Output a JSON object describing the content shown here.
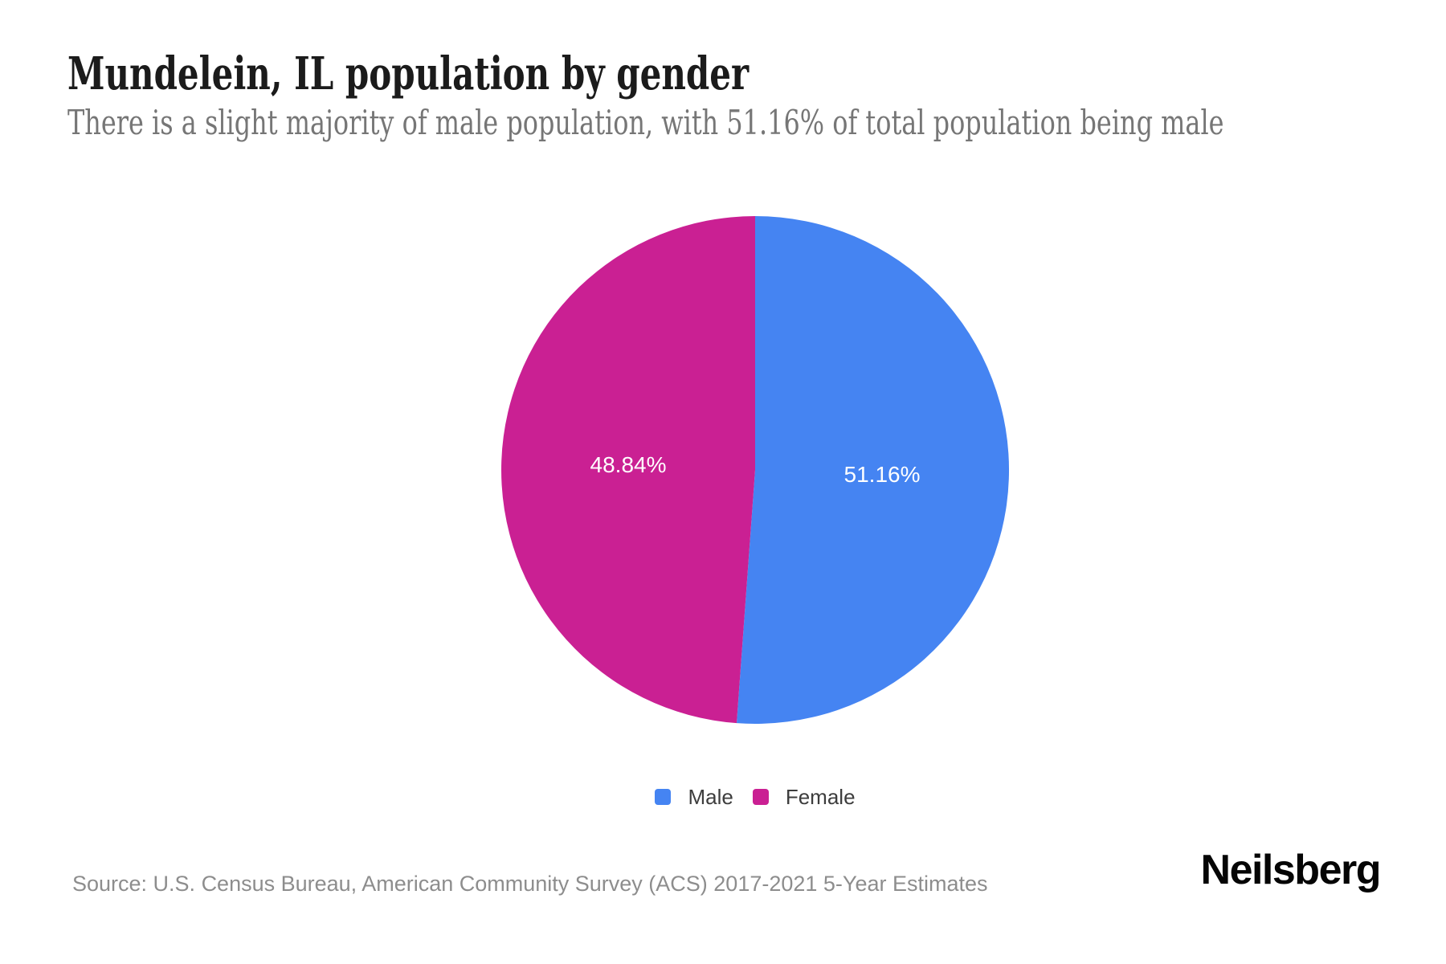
{
  "page": {
    "title": "Mundelein, IL population by gender",
    "subtitle": "There is a slight majority of male population, with 51.16% of total population being male",
    "source": "Source: U.S. Census Bureau, American Community Survey (ACS) 2017-2021 5-Year Estimates",
    "brand": "Neilsberg"
  },
  "colors": {
    "male": "#4584F2",
    "female": "#CA2093",
    "background": "#FFFFFF",
    "title_text": "#1B1B1B",
    "subtitle_text": "#767676",
    "source_text": "#8D8D8D",
    "slice_label_text": "#FFFFFF"
  },
  "chart_data": {
    "type": "pie",
    "title": "Mundelein, IL population by gender",
    "categories": [
      "Male",
      "Female"
    ],
    "values": [
      51.16,
      48.84
    ],
    "slices": [
      {
        "label": "Male",
        "value": 51.16,
        "display_value": "51.16%",
        "color": "#4584F2"
      },
      {
        "label": "Female",
        "value": 48.84,
        "display_value": "48.84%",
        "color": "#CA2093"
      }
    ],
    "start_angle_deg": 0,
    "direction": "clockwise",
    "legend_position": "bottom",
    "value_labels": "inside"
  }
}
